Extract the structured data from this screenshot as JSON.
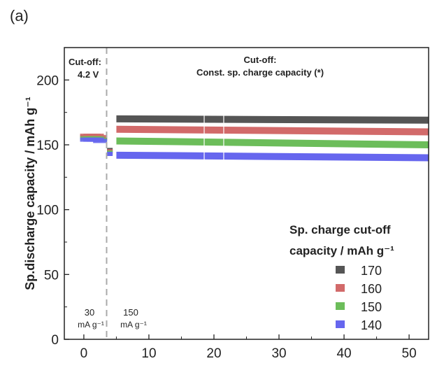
{
  "panel_label": "(a)",
  "chart_data": {
    "type": "scatter",
    "title": "",
    "xlabel": "",
    "ylabel": "Sp.discharge capacity / mAh g⁻¹",
    "xlim": [
      -3,
      53
    ],
    "ylim": [
      0,
      225
    ],
    "x_ticks": [
      0,
      10,
      20,
      30,
      40,
      50
    ],
    "y_ticks": [
      0,
      50,
      100,
      150,
      200
    ],
    "grid": false,
    "annotations": {
      "cutoff_left": [
        "Cut-off:",
        "4.2 V"
      ],
      "cutoff_right": [
        "Cut-off:",
        "Const. sp. charge capacity (*)"
      ],
      "rate_low": [
        "30",
        "mA g⁻¹"
      ],
      "rate_high": [
        "150",
        "mA g⁻¹"
      ]
    },
    "divider_x": 3.5,
    "legend": {
      "title_line1": "Sp. charge cut-off",
      "title_line2": "capacity / mAh g⁻¹",
      "placement": "bottom-right"
    },
    "series": [
      {
        "name": "170",
        "color": "#555555",
        "initial": [
          [
            0.5,
            156
          ],
          [
            1,
            156
          ],
          [
            1.5,
            156
          ],
          [
            2,
            156
          ],
          [
            2.5,
            155
          ]
        ],
        "drop": [
          [
            4,
            146
          ]
        ],
        "x_start": 5,
        "x_end": 53,
        "y_start": 170,
        "y_end": 169
      },
      {
        "name": "160",
        "color": "#d26a6a",
        "initial": [
          [
            0.5,
            157
          ],
          [
            1,
            157
          ],
          [
            1.5,
            157
          ],
          [
            2,
            157
          ],
          [
            2.5,
            156
          ]
        ],
        "drop": [
          [
            4,
            145
          ]
        ],
        "x_start": 5,
        "x_end": 53,
        "y_start": 162,
        "y_end": 160
      },
      {
        "name": "150",
        "color": "#6cbd5a",
        "initial": [
          [
            0.5,
            155
          ],
          [
            1,
            155
          ],
          [
            1.5,
            155
          ],
          [
            2,
            155
          ],
          [
            2.5,
            154
          ]
        ],
        "drop": [
          [
            4,
            144
          ]
        ],
        "x_start": 5,
        "x_end": 53,
        "y_start": 153,
        "y_end": 150
      },
      {
        "name": "140",
        "color": "#6666ee",
        "initial": [
          [
            0.5,
            154
          ],
          [
            1,
            154
          ],
          [
            1.5,
            154
          ],
          [
            2,
            154
          ],
          [
            2.5,
            153
          ]
        ],
        "drop": [
          [
            4,
            143
          ]
        ],
        "x_start": 5,
        "x_end": 53,
        "y_start": 142,
        "y_end": 140
      }
    ]
  }
}
